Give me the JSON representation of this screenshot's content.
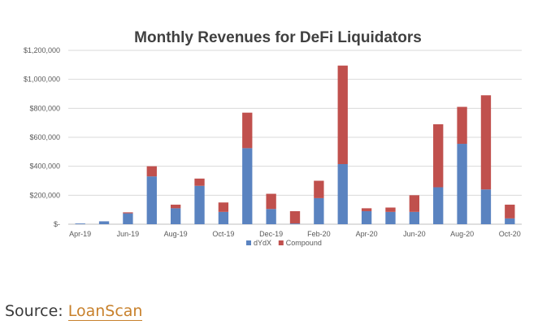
{
  "chart_data": {
    "type": "bar",
    "stacked": true,
    "title": "Monthly Revenues for DeFi Liquidators",
    "xlabel": "",
    "ylabel": "",
    "ylim": [
      0,
      1200000
    ],
    "y_ticks": [
      0,
      200000,
      400000,
      600000,
      800000,
      1000000,
      1200000
    ],
    "y_tick_labels": [
      "$-",
      "$200,000",
      "$400,000",
      "$600,000",
      "$800,000",
      "$1,000,000",
      "$1,200,000"
    ],
    "categories": [
      "Apr-19",
      "May-19",
      "Jun-19",
      "Jul-19",
      "Aug-19",
      "Sep-19",
      "Oct-19",
      "Nov-19",
      "Dec-19",
      "Jan-20",
      "Feb-20",
      "Mar-20",
      "Apr-20",
      "May-20",
      "Jun-20",
      "Jul-20",
      "Aug-20",
      "Sep-20",
      "Oct-20"
    ],
    "x_tick_labels": [
      "Apr-19",
      "",
      "Jun-19",
      "",
      "Aug-19",
      "",
      "Oct-19",
      "",
      "Dec-19",
      "",
      "Feb-20",
      "",
      "Apr-20",
      "",
      "Jun-20",
      "",
      "Aug-20",
      "",
      "Oct-20"
    ],
    "series": [
      {
        "name": "dYdX",
        "color": "#5a83c0",
        "values": [
          5000,
          20000,
          75000,
          330000,
          110000,
          265000,
          85000,
          525000,
          105000,
          5000,
          180000,
          415000,
          90000,
          85000,
          85000,
          255000,
          555000,
          240000,
          40000
        ]
      },
      {
        "name": "Compound",
        "color": "#c0504d",
        "values": [
          0,
          0,
          7000,
          70000,
          25000,
          50000,
          65000,
          245000,
          105000,
          85000,
          120000,
          680000,
          20000,
          30000,
          115000,
          435000,
          255000,
          650000,
          95000
        ]
      }
    ],
    "legend_position": "bottom-center",
    "grid": true
  },
  "footer": {
    "source_label": "Source: ",
    "source_link": "LoanScan"
  }
}
